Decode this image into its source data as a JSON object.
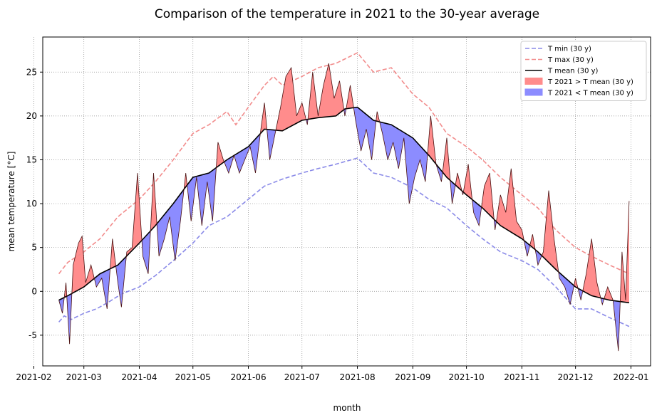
{
  "chart_data": {
    "type": "line",
    "title": "Comparison of the temperature in 2021 to the 30-year average",
    "xlabel": "month",
    "ylabel": "mean temperature [°C]",
    "xlim": [
      "2021-02-06",
      "2022-01-12"
    ],
    "ylim": [
      -8.5,
      29
    ],
    "grid": true,
    "legend_position": "top-right",
    "x_ticks": [
      "2021-02",
      "2021-03",
      "2021-04",
      "2021-05",
      "2021-06",
      "2021-07",
      "2021-08",
      "2021-09",
      "2021-10",
      "2021-11",
      "2021-12",
      "2022-01"
    ],
    "y_ticks": [
      -5,
      0,
      5,
      10,
      15,
      20,
      25
    ],
    "series": [
      {
        "name": "T min (30 y)",
        "color": "#8a8ae8",
        "style": "dashed",
        "points": [
          [
            "2021-02-15",
            -3.5
          ],
          [
            "2021-02-18",
            -2.8
          ],
          [
            "2021-02-22",
            -3.2
          ],
          [
            "2021-03-01",
            -2.5
          ],
          [
            "2021-03-08",
            -2.0
          ],
          [
            "2021-03-15",
            -1.2
          ],
          [
            "2021-03-22",
            -0.3
          ],
          [
            "2021-04-01",
            0.5
          ],
          [
            "2021-04-10",
            1.8
          ],
          [
            "2021-04-20",
            3.5
          ],
          [
            "2021-05-01",
            5.5
          ],
          [
            "2021-05-10",
            7.5
          ],
          [
            "2021-05-20",
            8.5
          ],
          [
            "2021-06-01",
            10.5
          ],
          [
            "2021-06-10",
            12.0
          ],
          [
            "2021-06-20",
            12.8
          ],
          [
            "2021-07-01",
            13.5
          ],
          [
            "2021-07-10",
            14.0
          ],
          [
            "2021-07-20",
            14.5
          ],
          [
            "2021-08-01",
            15.2
          ],
          [
            "2021-08-10",
            13.5
          ],
          [
            "2021-08-20",
            13.0
          ],
          [
            "2021-09-01",
            11.8
          ],
          [
            "2021-09-10",
            10.5
          ],
          [
            "2021-09-20",
            9.5
          ],
          [
            "2021-10-01",
            7.5
          ],
          [
            "2021-10-10",
            6.0
          ],
          [
            "2021-10-20",
            4.5
          ],
          [
            "2021-11-01",
            3.5
          ],
          [
            "2021-11-10",
            2.5
          ],
          [
            "2021-11-20",
            0.5
          ],
          [
            "2021-12-01",
            -2.0
          ],
          [
            "2021-12-10",
            -2.0
          ],
          [
            "2021-12-20",
            -3.0
          ],
          [
            "2021-12-31",
            -4.0
          ]
        ]
      },
      {
        "name": "T max (30 y)",
        "color": "#f28c8c",
        "style": "dashed",
        "points": [
          [
            "2021-02-15",
            2.0
          ],
          [
            "2021-02-20",
            3.3
          ],
          [
            "2021-03-01",
            4.5
          ],
          [
            "2021-03-10",
            6.0
          ],
          [
            "2021-03-20",
            8.5
          ],
          [
            "2021-04-01",
            10.5
          ],
          [
            "2021-04-10",
            12.5
          ],
          [
            "2021-04-20",
            15.0
          ],
          [
            "2021-05-01",
            18.0
          ],
          [
            "2021-05-10",
            19.0
          ],
          [
            "2021-05-20",
            20.5
          ],
          [
            "2021-05-25",
            19.0
          ],
          [
            "2021-06-01",
            21.0
          ],
          [
            "2021-06-10",
            23.5
          ],
          [
            "2021-06-15",
            24.5
          ],
          [
            "2021-06-20",
            23.5
          ],
          [
            "2021-07-01",
            24.5
          ],
          [
            "2021-07-10",
            25.5
          ],
          [
            "2021-07-20",
            26.0
          ],
          [
            "2021-08-01",
            27.2
          ],
          [
            "2021-08-10",
            25.0
          ],
          [
            "2021-08-20",
            25.5
          ],
          [
            "2021-09-01",
            22.5
          ],
          [
            "2021-09-10",
            21.0
          ],
          [
            "2021-09-20",
            18.0
          ],
          [
            "2021-10-01",
            16.5
          ],
          [
            "2021-10-10",
            15.0
          ],
          [
            "2021-10-20",
            13.0
          ],
          [
            "2021-11-01",
            11.0
          ],
          [
            "2021-11-10",
            9.5
          ],
          [
            "2021-11-20",
            7.0
          ],
          [
            "2021-12-01",
            5.0
          ],
          [
            "2021-12-10",
            4.0
          ],
          [
            "2021-12-20",
            3.0
          ],
          [
            "2021-12-31",
            2.0
          ]
        ]
      },
      {
        "name": "T mean (30 y)",
        "color": "#000000",
        "style": "solid",
        "points": [
          [
            "2021-02-15",
            -1.0
          ],
          [
            "2021-02-20",
            -0.5
          ],
          [
            "2021-03-01",
            0.5
          ],
          [
            "2021-03-10",
            2.0
          ],
          [
            "2021-03-20",
            3.0
          ],
          [
            "2021-04-01",
            5.5
          ],
          [
            "2021-04-10",
            7.5
          ],
          [
            "2021-04-20",
            10.0
          ],
          [
            "2021-05-01",
            13.0
          ],
          [
            "2021-05-10",
            13.5
          ],
          [
            "2021-05-20",
            15.0
          ],
          [
            "2021-06-01",
            16.5
          ],
          [
            "2021-06-10",
            18.5
          ],
          [
            "2021-06-20",
            18.3
          ],
          [
            "2021-07-01",
            19.5
          ],
          [
            "2021-07-10",
            19.8
          ],
          [
            "2021-07-20",
            20.0
          ],
          [
            "2021-07-25",
            20.8
          ],
          [
            "2021-08-01",
            21.0
          ],
          [
            "2021-08-10",
            19.5
          ],
          [
            "2021-08-20",
            19.0
          ],
          [
            "2021-09-01",
            17.5
          ],
          [
            "2021-09-10",
            15.5
          ],
          [
            "2021-09-20",
            13.0
          ],
          [
            "2021-10-01",
            11.0
          ],
          [
            "2021-10-10",
            9.5
          ],
          [
            "2021-10-20",
            7.5
          ],
          [
            "2021-11-01",
            6.0
          ],
          [
            "2021-11-10",
            4.5
          ],
          [
            "2021-11-20",
            2.5
          ],
          [
            "2021-12-01",
            0.5
          ],
          [
            "2021-12-10",
            -0.5
          ],
          [
            "2021-12-20",
            -1.0
          ],
          [
            "2021-12-31",
            -1.3
          ]
        ]
      },
      {
        "name": "T 2021",
        "color": "#4a1010",
        "style": "thin",
        "points": [
          [
            "2021-02-15",
            -1.0
          ],
          [
            "2021-02-17",
            -2.5
          ],
          [
            "2021-02-19",
            1.0
          ],
          [
            "2021-02-21",
            -6.0
          ],
          [
            "2021-02-23",
            3.0
          ],
          [
            "2021-02-26",
            5.5
          ],
          [
            "2021-02-28",
            6.3
          ],
          [
            "2021-03-02",
            1.0
          ],
          [
            "2021-03-05",
            3.0
          ],
          [
            "2021-03-08",
            0.5
          ],
          [
            "2021-03-11",
            1.5
          ],
          [
            "2021-03-14",
            -2.0
          ],
          [
            "2021-03-17",
            6.0
          ],
          [
            "2021-03-20",
            1.0
          ],
          [
            "2021-03-22",
            -1.8
          ],
          [
            "2021-03-25",
            4.5
          ],
          [
            "2021-03-28",
            5.0
          ],
          [
            "2021-03-31",
            13.5
          ],
          [
            "2021-04-03",
            4.0
          ],
          [
            "2021-04-06",
            2.0
          ],
          [
            "2021-04-09",
            13.5
          ],
          [
            "2021-04-12",
            4.0
          ],
          [
            "2021-04-15",
            6.0
          ],
          [
            "2021-04-18",
            8.5
          ],
          [
            "2021-04-21",
            3.5
          ],
          [
            "2021-04-24",
            8.0
          ],
          [
            "2021-04-27",
            13.5
          ],
          [
            "2021-04-30",
            8.0
          ],
          [
            "2021-05-03",
            13.0
          ],
          [
            "2021-05-06",
            7.5
          ],
          [
            "2021-05-09",
            12.5
          ],
          [
            "2021-05-12",
            8.0
          ],
          [
            "2021-05-15",
            17.0
          ],
          [
            "2021-05-18",
            15.0
          ],
          [
            "2021-05-21",
            13.5
          ],
          [
            "2021-05-24",
            15.5
          ],
          [
            "2021-05-27",
            13.5
          ],
          [
            "2021-05-30",
            15.0
          ],
          [
            "2021-06-02",
            16.5
          ],
          [
            "2021-06-05",
            13.5
          ],
          [
            "2021-06-08",
            18.5
          ],
          [
            "2021-06-10",
            21.5
          ],
          [
            "2021-06-13",
            15.0
          ],
          [
            "2021-06-16",
            18.0
          ],
          [
            "2021-06-19",
            21.0
          ],
          [
            "2021-06-22",
            24.5
          ],
          [
            "2021-06-25",
            25.5
          ],
          [
            "2021-06-28",
            20.0
          ],
          [
            "2021-07-01",
            21.5
          ],
          [
            "2021-07-04",
            19.0
          ],
          [
            "2021-07-07",
            25.0
          ],
          [
            "2021-07-10",
            20.0
          ],
          [
            "2021-07-13",
            23.5
          ],
          [
            "2021-07-16",
            26.0
          ],
          [
            "2021-07-19",
            22.0
          ],
          [
            "2021-07-22",
            24.0
          ],
          [
            "2021-07-25",
            20.0
          ],
          [
            "2021-07-28",
            23.5
          ],
          [
            "2021-07-31",
            19.5
          ],
          [
            "2021-08-03",
            16.0
          ],
          [
            "2021-08-06",
            18.5
          ],
          [
            "2021-08-09",
            15.0
          ],
          [
            "2021-08-12",
            20.5
          ],
          [
            "2021-08-15",
            18.0
          ],
          [
            "2021-08-18",
            15.0
          ],
          [
            "2021-08-21",
            17.0
          ],
          [
            "2021-08-24",
            14.0
          ],
          [
            "2021-08-27",
            17.5
          ],
          [
            "2021-08-30",
            10.0
          ],
          [
            "2021-09-02",
            13.0
          ],
          [
            "2021-09-05",
            15.0
          ],
          [
            "2021-09-08",
            12.5
          ],
          [
            "2021-09-11",
            20.0
          ],
          [
            "2021-09-14",
            14.5
          ],
          [
            "2021-09-17",
            12.5
          ],
          [
            "2021-09-20",
            17.5
          ],
          [
            "2021-09-23",
            10.0
          ],
          [
            "2021-09-26",
            13.5
          ],
          [
            "2021-09-29",
            11.0
          ],
          [
            "2021-10-02",
            14.5
          ],
          [
            "2021-10-05",
            9.0
          ],
          [
            "2021-10-08",
            7.5
          ],
          [
            "2021-10-11",
            12.0
          ],
          [
            "2021-10-14",
            13.5
          ],
          [
            "2021-10-17",
            7.0
          ],
          [
            "2021-10-20",
            11.0
          ],
          [
            "2021-10-23",
            9.0
          ],
          [
            "2021-10-26",
            14.0
          ],
          [
            "2021-10-29",
            8.0
          ],
          [
            "2021-11-01",
            7.0
          ],
          [
            "2021-11-04",
            4.0
          ],
          [
            "2021-11-07",
            6.5
          ],
          [
            "2021-11-10",
            3.0
          ],
          [
            "2021-11-13",
            4.5
          ],
          [
            "2021-11-16",
            11.5
          ],
          [
            "2021-11-19",
            6.0
          ],
          [
            "2021-11-22",
            1.5
          ],
          [
            "2021-11-25",
            0.5
          ],
          [
            "2021-11-28",
            -1.5
          ],
          [
            "2021-12-01",
            1.5
          ],
          [
            "2021-12-04",
            -1.0
          ],
          [
            "2021-12-07",
            2.0
          ],
          [
            "2021-12-10",
            6.0
          ],
          [
            "2021-12-13",
            1.0
          ],
          [
            "2021-12-16",
            -1.5
          ],
          [
            "2021-12-19",
            0.5
          ],
          [
            "2021-12-22",
            -1.0
          ],
          [
            "2021-12-25",
            -6.8
          ],
          [
            "2021-12-27",
            4.5
          ],
          [
            "2021-12-29",
            -1.0
          ],
          [
            "2021-12-31",
            10.3
          ]
        ]
      }
    ],
    "legend": [
      {
        "label": "T min (30 y)",
        "kind": "dashed",
        "color": "#8a8ae8"
      },
      {
        "label": "T max (30 y)",
        "kind": "dashed",
        "color": "#f28c8c"
      },
      {
        "label": "T mean (30 y)",
        "kind": "line",
        "color": "#000000"
      },
      {
        "label": "T 2021 > T mean (30 y)",
        "kind": "patch",
        "color": "#ff8c8c"
      },
      {
        "label": "T 2021 < T mean (30 y)",
        "kind": "patch",
        "color": "#8c8cff"
      }
    ]
  }
}
